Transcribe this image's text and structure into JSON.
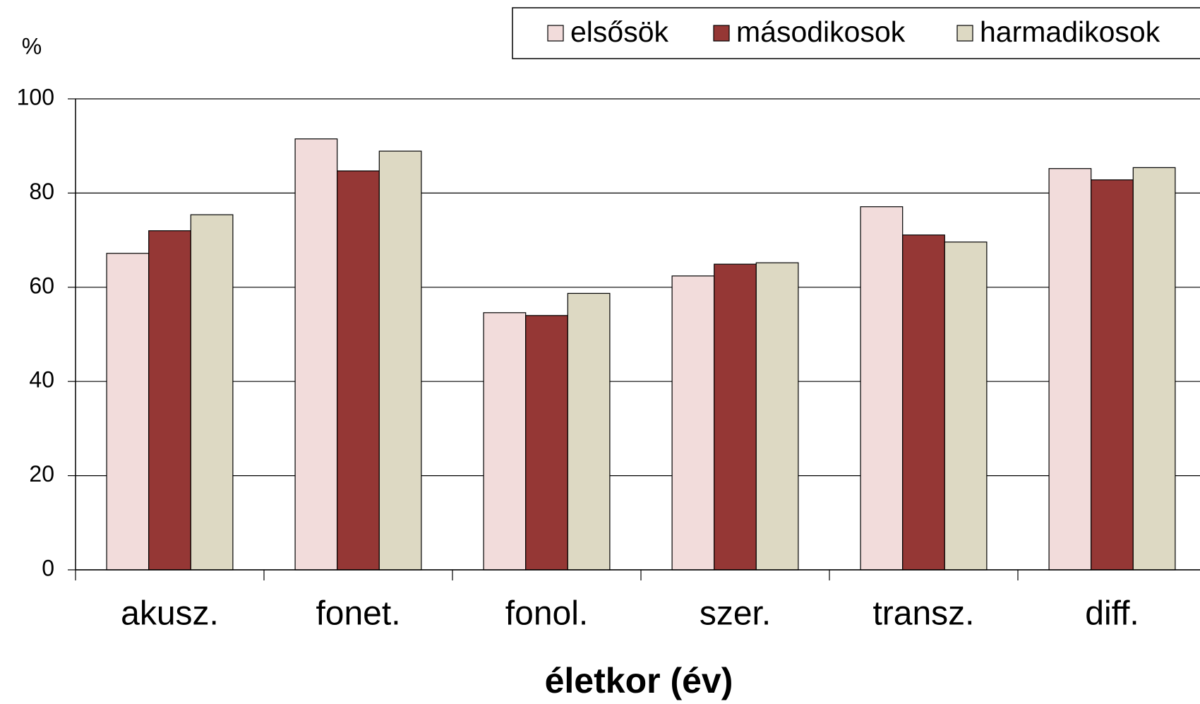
{
  "chart_data": {
    "type": "bar",
    "y_label": "%",
    "x_label": "életkor (év)",
    "categories": [
      "akusz.",
      "fonet.",
      "fonol.",
      "szer.",
      "transz.",
      "diff."
    ],
    "series": [
      {
        "name": "elsősök",
        "color": "#f2dcdb",
        "values": [
          67.2,
          91.5,
          54.6,
          62.4,
          77.1,
          85.2
        ]
      },
      {
        "name": "másodikosok",
        "color": "#953735",
        "values": [
          72.0,
          84.7,
          54.0,
          64.9,
          71.1,
          82.8
        ]
      },
      {
        "name": "harmadikosok",
        "color": "#ddd9c3",
        "values": [
          75.4,
          88.9,
          58.7,
          65.2,
          69.6,
          85.4
        ]
      }
    ],
    "ylim": [
      0,
      100
    ],
    "yticks": [
      0,
      20,
      40,
      60,
      80,
      100
    ],
    "grid": true,
    "legend": "top-right"
  }
}
